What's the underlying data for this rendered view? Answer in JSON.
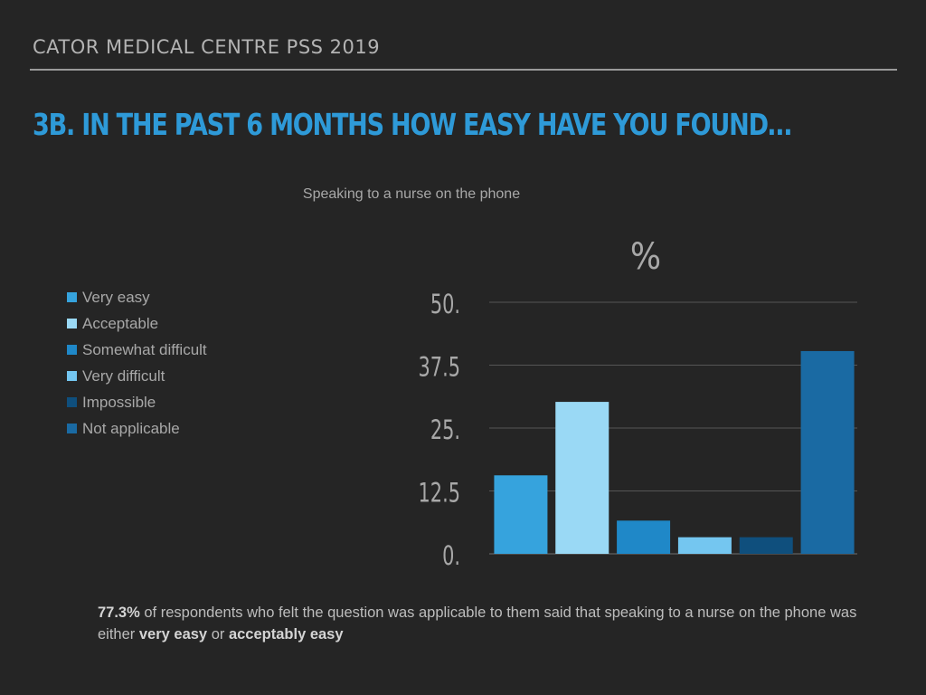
{
  "header": {
    "title": "CATOR MEDICAL CENTRE PSS 2019"
  },
  "slide": {
    "title": "3B. IN THE PAST 6 MONTHS HOW EASY HAVE YOU FOUND…"
  },
  "chart_data": {
    "type": "bar",
    "title": "Speaking to a nurse on the phone",
    "ylabel": "%",
    "xlabel": "",
    "ylim": [
      0,
      50
    ],
    "yticks": [
      0,
      12.5,
      25,
      37.5,
      50
    ],
    "ytick_labels": [
      "0.",
      "12.5",
      "25.",
      "37.5",
      "50."
    ],
    "grid": true,
    "legend_position": "left",
    "categories": [
      "Very easy",
      "Acceptable",
      "Somewhat difficult",
      "Very difficult",
      "Impossible",
      "Not applicable"
    ],
    "values": [
      15.6,
      30.2,
      6.6,
      3.3,
      3.3,
      40.3
    ],
    "colors": [
      "#36a3dd",
      "#9ad9f5",
      "#1f88c8",
      "#74c6f0",
      "#0f4f7d",
      "#1a6aa3"
    ]
  },
  "summary": {
    "percent": "77.3%",
    "text_1": " of respondents who felt the question was applicable to them said that speaking to a nurse on the phone was either ",
    "very_easy": "very easy",
    "text_2": " or ",
    "acceptably_easy": "acceptably easy"
  }
}
